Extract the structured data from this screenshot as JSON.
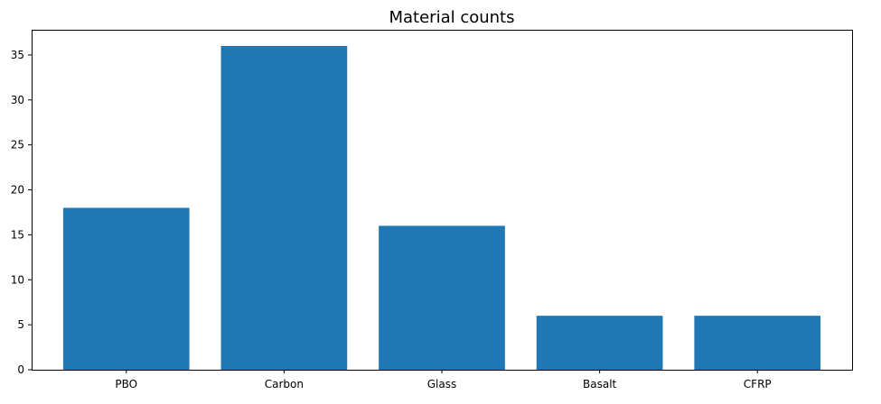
{
  "chart_data": {
    "type": "bar",
    "title": "Material counts",
    "xlabel": "",
    "ylabel": "",
    "categories": [
      "PBO",
      "Carbon",
      "Glass",
      "Basalt",
      "CFRP"
    ],
    "values": [
      18,
      36,
      16,
      6,
      6
    ],
    "ylim": [
      0,
      37.8
    ],
    "yticks": [
      0,
      5,
      10,
      15,
      20,
      25,
      30,
      35
    ],
    "grid": false,
    "legend": "none",
    "bar_color": "#1f77b4"
  }
}
